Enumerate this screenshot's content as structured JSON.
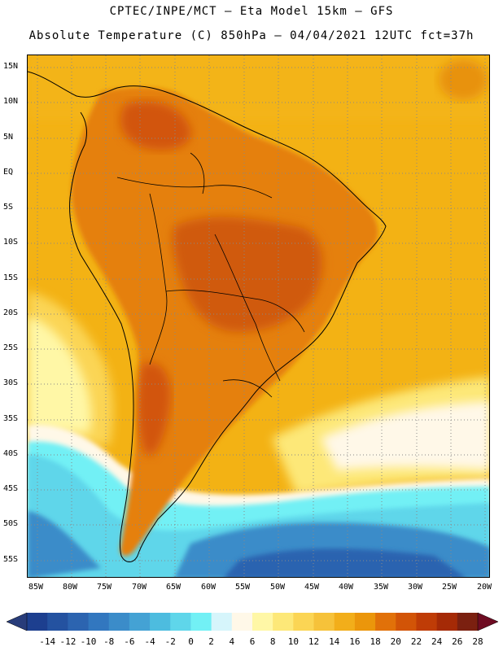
{
  "title_line1": "CPTEC/INPE/MCT –  Eta Model 15km – GFS",
  "title_line2": "Absolute Temperature (C) 850hPa – 04/04/2021 12UTC fct=37h",
  "lat_labels": [
    "15N",
    "10N",
    "5N",
    "EQ",
    "5S",
    "10S",
    "15S",
    "20S",
    "25S",
    "30S",
    "35S",
    "40S",
    "45S",
    "50S",
    "55S"
  ],
  "lon_labels": [
    "85W",
    "80W",
    "75W",
    "70W",
    "65W",
    "60W",
    "55W",
    "50W",
    "45W",
    "40W",
    "35W",
    "30W",
    "25W",
    "20W"
  ],
  "colorbar": {
    "labels": [
      "-14",
      "-12",
      "-10",
      "-8",
      "-6",
      "-4",
      "-2",
      "0",
      "2",
      "4",
      "6",
      "8",
      "10",
      "12",
      "14",
      "16",
      "18",
      "20",
      "22",
      "24",
      "26",
      "28"
    ],
    "colors": [
      "#1d3f8f",
      "#2452a0",
      "#2c64b0",
      "#3277bf",
      "#3b8cc9",
      "#44a2d4",
      "#4dbcdf",
      "#5fd6ea",
      "#72f0f5",
      "#d6f5fb",
      "#fff8e8",
      "#fff7a6",
      "#fde878",
      "#fbd554",
      "#f6c23a",
      "#f2ae1a",
      "#eb960b",
      "#e17109",
      "#d25407",
      "#bf3c06",
      "#a52a06",
      "#7b2010"
    ],
    "low_arrow_color": "#283c7a",
    "high_arrow_color": "#6e0c22"
  },
  "colors": {
    "ocean_warm": "#f3b214",
    "land_hot": "#e5800c",
    "land_core": "#d05a08",
    "cool_band": "#fff6b0",
    "cold_band": "#5fd6ea",
    "very_cold": "#3277bf",
    "grid": "#888888"
  }
}
